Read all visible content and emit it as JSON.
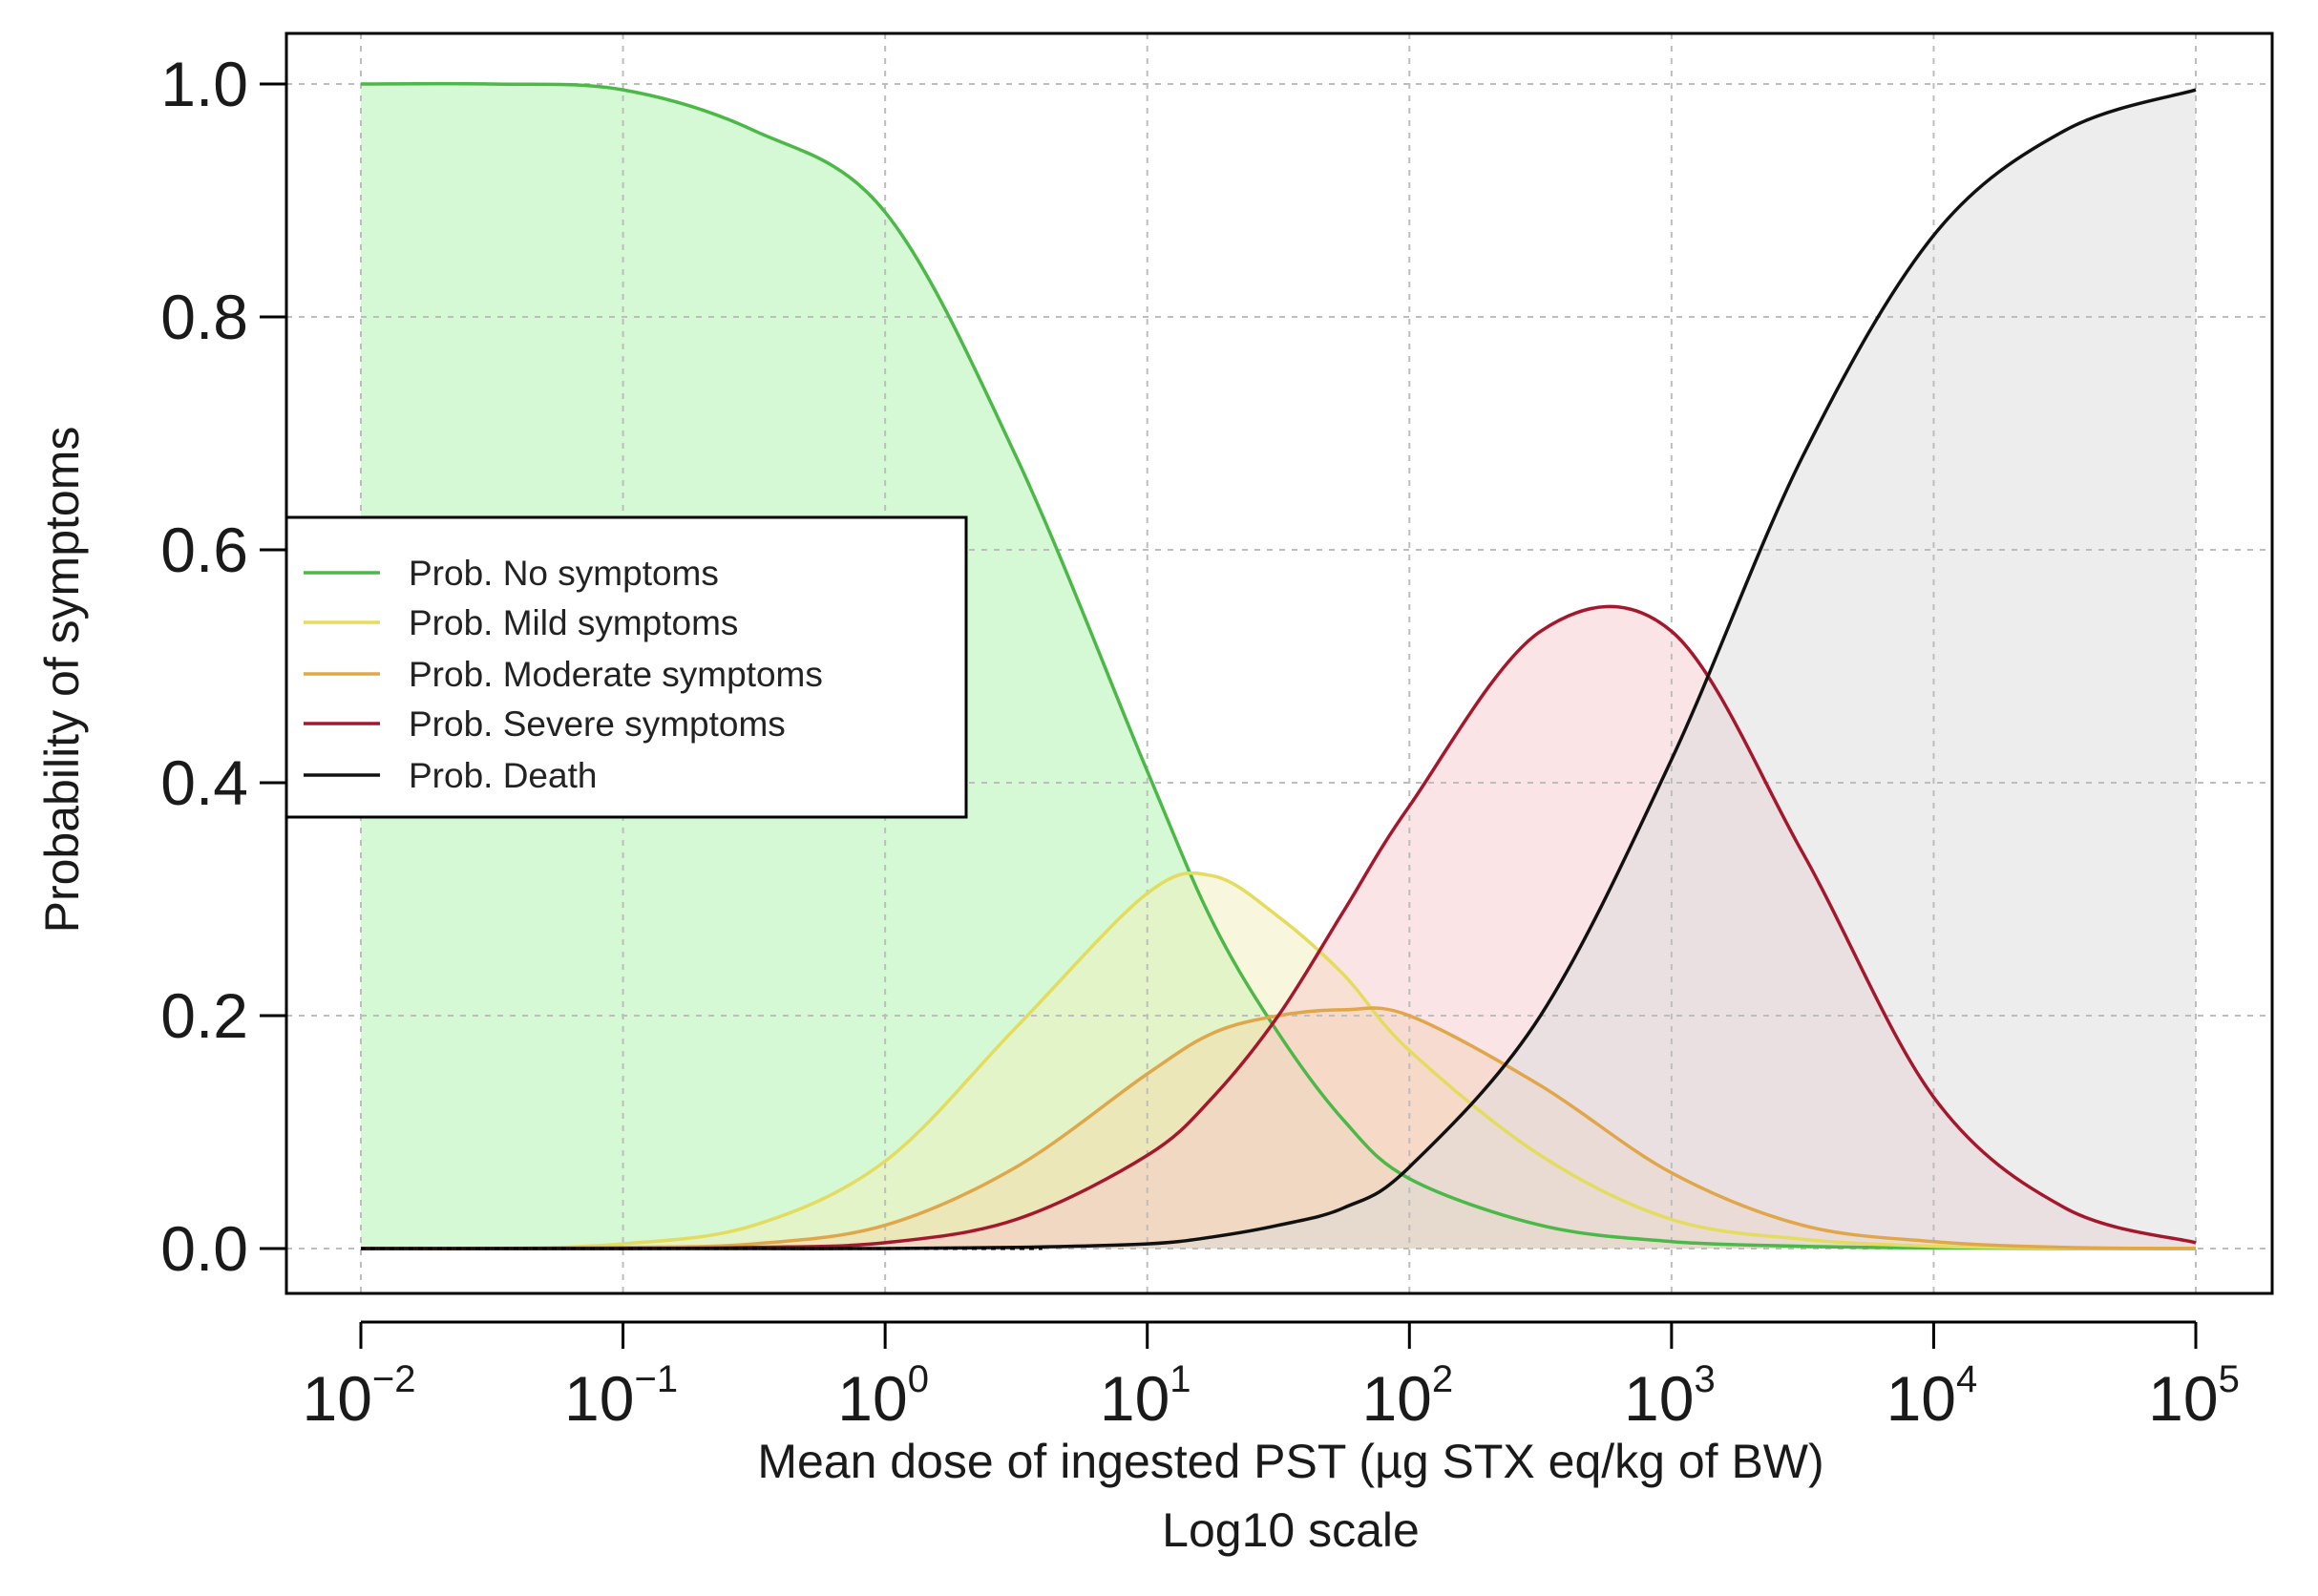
{
  "chart_data": {
    "type": "line",
    "xscale": "log10",
    "xlim": [
      0.01,
      100000
    ],
    "ylim": [
      0,
      1
    ],
    "y_ticks": [
      "0.0",
      "0.2",
      "0.4",
      "0.6",
      "0.8",
      "1.0"
    ],
    "x_ticks": [
      {
        "base": "10",
        "exp": "−2"
      },
      {
        "base": "10",
        "exp": "−1"
      },
      {
        "base": "10",
        "exp": "0"
      },
      {
        "base": "10",
        "exp": "1"
      },
      {
        "base": "10",
        "exp": "2"
      },
      {
        "base": "10",
        "exp": "3"
      },
      {
        "base": "10",
        "exp": "4"
      },
      {
        "base": "10",
        "exp": "5"
      }
    ],
    "xlabel": "Mean dose of ingested PST (µg STX eq/kg of BW)",
    "xlabel_line2": "Log10 scale",
    "ylabel": "Probability of symptoms",
    "grid": true,
    "legend_position": "left",
    "log10_x": [
      -2,
      -1.5,
      -1,
      -0.5,
      0,
      0.5,
      1,
      1.25,
      1.5,
      1.75,
      2,
      2.5,
      3,
      3.5,
      4,
      4.5,
      5
    ],
    "series": [
      {
        "name": "Prob. No symptoms",
        "color": "#4cb848",
        "fill": "#bff5bf",
        "values": [
          1.0,
          1.0,
          0.995,
          0.96,
          0.89,
          0.68,
          0.41,
          0.28,
          0.185,
          0.11,
          0.06,
          0.02,
          0.006,
          0.002,
          0.0005,
          0.0001,
          0.0
        ]
      },
      {
        "name": "Prob. Mild symptoms",
        "color": "#e3dc5f",
        "fill": "#f2efbc",
        "values": [
          0.0,
          0.0,
          0.004,
          0.02,
          0.075,
          0.19,
          0.305,
          0.32,
          0.285,
          0.235,
          0.17,
          0.08,
          0.025,
          0.008,
          0.002,
          0.0005,
          0.0
        ]
      },
      {
        "name": "Prob. Moderate symptoms",
        "color": "#e0a64a",
        "fill": "#f3d9a8",
        "values": [
          0.0,
          0.0,
          0.001,
          0.004,
          0.02,
          0.07,
          0.15,
          0.185,
          0.2,
          0.205,
          0.2,
          0.14,
          0.065,
          0.02,
          0.006,
          0.001,
          0.0
        ]
      },
      {
        "name": "Prob. Severe symptoms",
        "color": "#a3182c",
        "fill": "#f8c9cd",
        "values": [
          0.0,
          0.0,
          0.0,
          0.001,
          0.005,
          0.025,
          0.08,
          0.13,
          0.2,
          0.29,
          0.38,
          0.53,
          0.53,
          0.34,
          0.13,
          0.035,
          0.005
        ]
      },
      {
        "name": "Prob. Death",
        "color": "#111111",
        "fill": "#dcdcdc",
        "values": [
          0.0,
          0.0,
          0.0,
          0.0,
          0.0,
          0.001,
          0.004,
          0.01,
          0.02,
          0.035,
          0.07,
          0.2,
          0.42,
          0.68,
          0.87,
          0.96,
          0.995
        ]
      }
    ]
  }
}
